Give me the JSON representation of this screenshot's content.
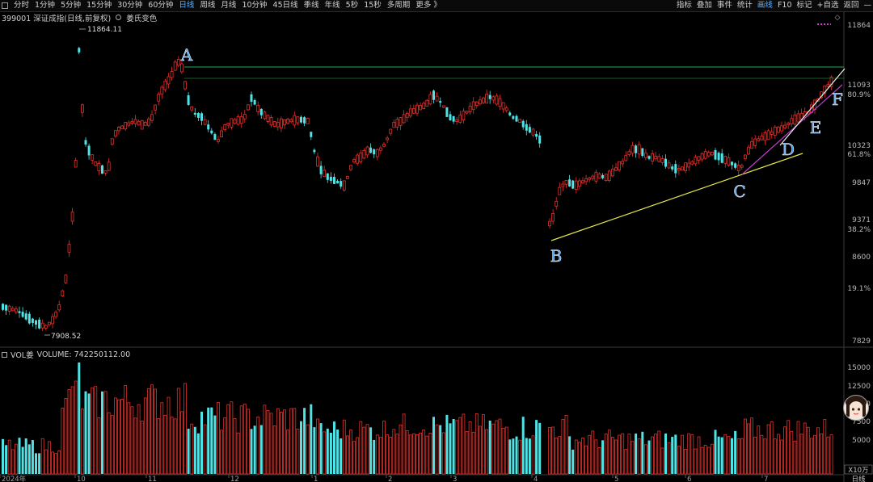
{
  "toolbar": {
    "left_items": [
      "分时",
      "1分钟",
      "5分钟",
      "15分钟",
      "30分钟",
      "60分钟",
      "日线",
      "周线",
      "月线",
      "10分钟",
      "45日线",
      "季线",
      "年线",
      "5秒",
      "15秒",
      "多周期",
      "更多 》"
    ],
    "active": "日线",
    "right_items": [
      "指标",
      "叠加",
      "事件",
      "统计",
      "画线",
      "F10",
      "标记",
      "+自选",
      "返回"
    ],
    "right_active": "画线"
  },
  "header": {
    "code_name": "399001 深证成指(日线,前复权)",
    "indicator": "姜氏变色"
  },
  "price_axis": {
    "labels": [
      "11864",
      "11093",
      "80.9%",
      "10323",
      "61.8%",
      "9847",
      "9371",
      "38.2%",
      "8600",
      "19.1%",
      "7829"
    ]
  },
  "annotations": {
    "high_label": "11864.11",
    "low_label": "7908.52",
    "points": [
      "A",
      "B",
      "C",
      "D",
      "E",
      "F"
    ]
  },
  "volume": {
    "title": "VOL姜",
    "value_text": "VOLUME: 742250112.00",
    "axis_labels": [
      "15000",
      "12500",
      "10000",
      "7500",
      "5000"
    ],
    "unit": "X10万"
  },
  "time_axis": {
    "labels": [
      "2024年",
      "10",
      "11",
      "12",
      "1",
      "2",
      "3",
      "4",
      "5",
      "6",
      "7"
    ],
    "period": "日线"
  },
  "colors": {
    "up": "#e5312b",
    "down": "#4fe3e6",
    "yellow_line": "#e6e64a",
    "green_line": "#2aa84a",
    "magenta_line": "#c03ccc",
    "label_blue": "#4f9bef",
    "active_tab": "#5ab0ff"
  }
}
